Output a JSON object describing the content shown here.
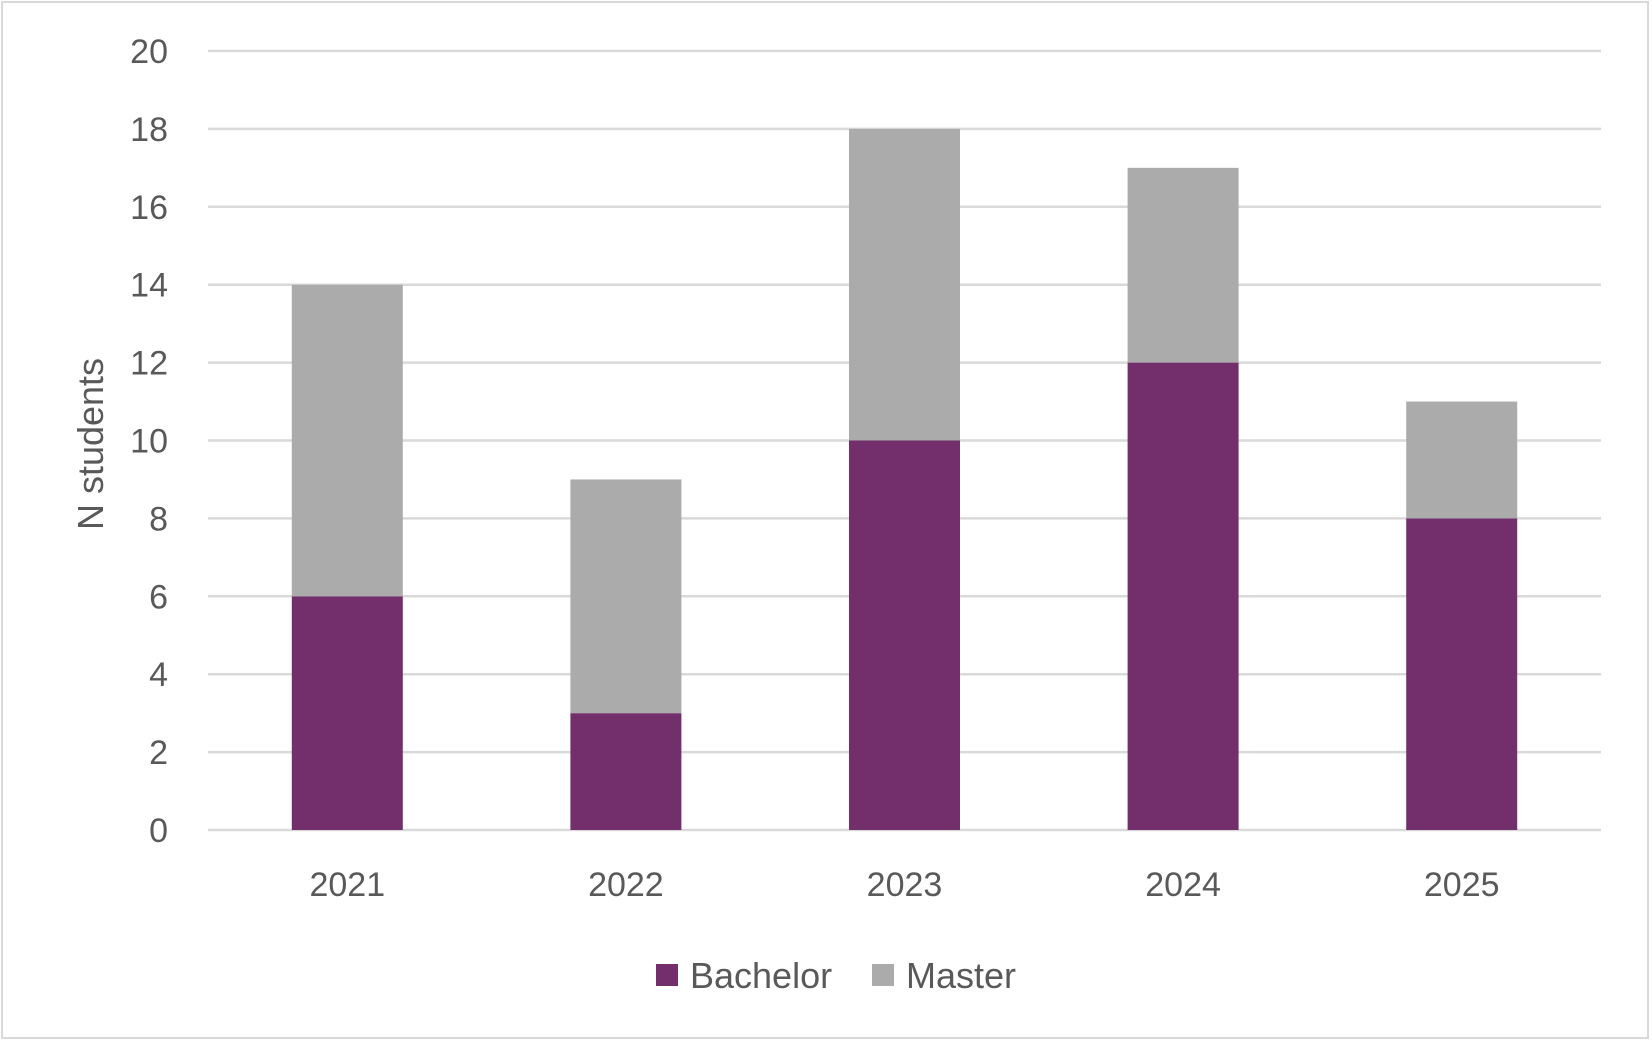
{
  "chart_data": {
    "type": "bar",
    "stacked": true,
    "categories": [
      "2021",
      "2022",
      "2023",
      "2024",
      "2025"
    ],
    "series": [
      {
        "name": "Bachelor",
        "values": [
          6,
          3,
          10,
          12,
          8
        ],
        "color": "#722f6b"
      },
      {
        "name": "Master",
        "values": [
          8,
          6,
          8,
          5,
          3
        ],
        "color": "#ababab"
      }
    ],
    "title": "",
    "xlabel": "",
    "ylabel": "N students",
    "ylim": [
      0,
      20
    ],
    "yticks": [
      "0",
      "2",
      "4",
      "6",
      "8",
      "10",
      "12",
      "14",
      "16",
      "18",
      "20"
    ],
    "grid": true,
    "gridColor": "#d9d9d9",
    "legend": "bottom"
  }
}
